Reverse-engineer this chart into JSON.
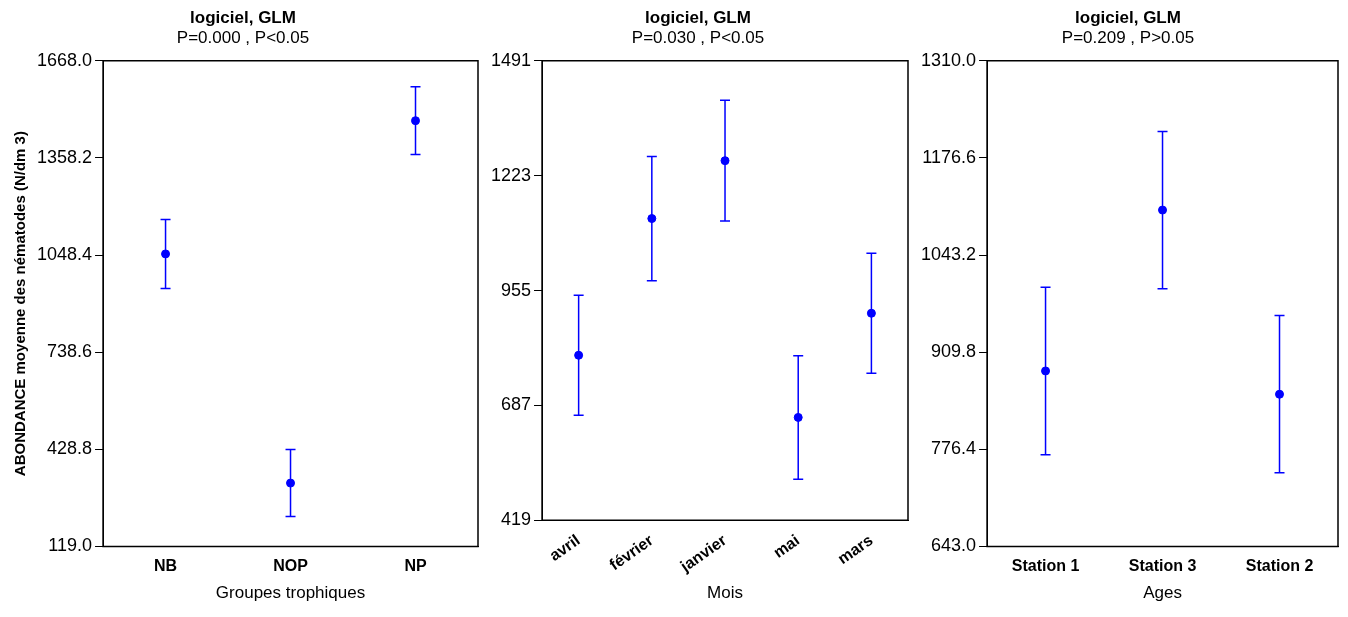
{
  "chart_data": [
    {
      "type": "scatter",
      "title": "logiciel, GLM",
      "subtitle": "P=0.000 , P<0.05",
      "xlabel": "Groupes trophiques",
      "ylabel": "ABONDANCE moyenne des nématodes (N/dm 3)",
      "categories": [
        "NB",
        "NOP",
        "NP"
      ],
      "series": [
        {
          "color": "#0000ff",
          "values": [
            1052,
            321,
            1477
          ],
          "errors": [
            110,
            107,
            108
          ]
        }
      ],
      "ylim": [
        119,
        1668
      ],
      "yticks": [
        {
          "value": 119,
          "label": "119.0"
        },
        {
          "value": 428.8,
          "label": "428.8"
        },
        {
          "value": 738.6,
          "label": "738.6"
        },
        {
          "value": 1048.4,
          "label": "1048.4"
        },
        {
          "value": 1358.2,
          "label": "1358.2"
        },
        {
          "value": 1668,
          "label": "1668.0"
        }
      ],
      "grid": false,
      "legend": false,
      "marker": "circle"
    },
    {
      "type": "scatter",
      "title": "logiciel, GLM",
      "subtitle": "P=0.030 , P<0.05",
      "xlabel": "Mois",
      "categories": [
        "avril",
        "février",
        "janvier",
        "mai",
        "mars"
      ],
      "series": [
        {
          "color": "#0000ff",
          "values": [
            804,
            1123,
            1258,
            659,
            902
          ],
          "errors": [
            140,
            145,
            141,
            144,
            140
          ]
        }
      ],
      "ylim": [
        419,
        1491
      ],
      "yticks": [
        419,
        687,
        955,
        1223,
        1491
      ],
      "grid": false,
      "legend": false,
      "marker": "circle"
    },
    {
      "type": "scatter",
      "title": "logiciel, GLM",
      "subtitle": "P=0.209 , P>0.05",
      "xlabel": "Ages",
      "categories": [
        "Station 1",
        "Station 3",
        "Station 2"
      ],
      "series": [
        {
          "color": "#0000ff",
          "values": [
            884,
            1105,
            852
          ],
          "errors": [
            115,
            108,
            108
          ]
        }
      ],
      "ylim": [
        643,
        1310
      ],
      "yticks": [
        {
          "value": 643,
          "label": "643.0"
        },
        {
          "value": 776.4,
          "label": "776.4"
        },
        {
          "value": 909.8,
          "label": "909.8"
        },
        {
          "value": 1043.2,
          "label": "1043.2"
        },
        {
          "value": 1176.6,
          "label": "1176.6"
        },
        {
          "value": 1310,
          "label": "1310.0"
        }
      ],
      "grid": false,
      "legend": false,
      "marker": "circle"
    }
  ]
}
